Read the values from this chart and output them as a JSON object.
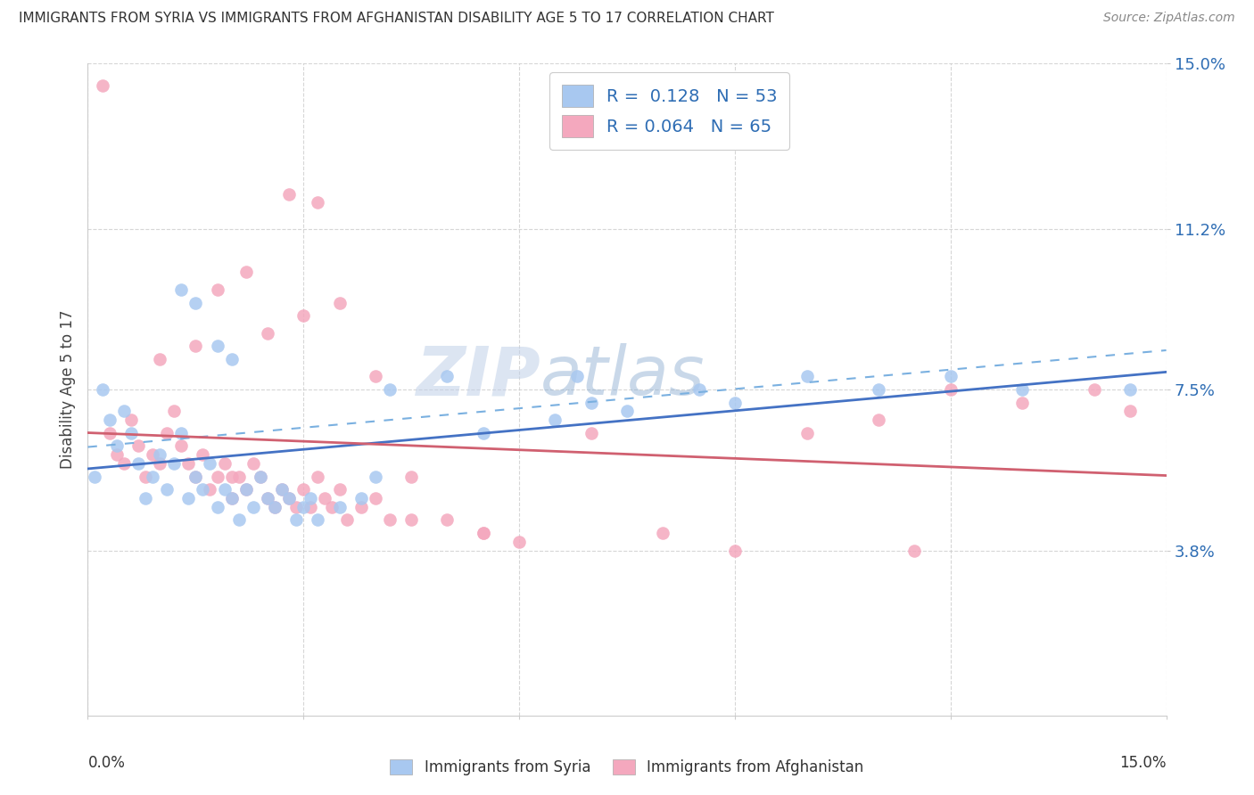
{
  "title": "IMMIGRANTS FROM SYRIA VS IMMIGRANTS FROM AFGHANISTAN DISABILITY AGE 5 TO 17 CORRELATION CHART",
  "source": "Source: ZipAtlas.com",
  "ylabel": "Disability Age 5 to 17",
  "xlim": [
    0.0,
    15.0
  ],
  "ylim": [
    0.0,
    15.0
  ],
  "yticks": [
    3.8,
    7.5,
    11.2,
    15.0
  ],
  "ytick_labels": [
    "3.8%",
    "7.5%",
    "11.2%",
    "15.0%"
  ],
  "legend1_R": "0.128",
  "legend1_N": "53",
  "legend2_R": "0.064",
  "legend2_N": "65",
  "series1_color": "#a8c8f0",
  "series2_color": "#f4a8be",
  "line1_color": "#4472c4",
  "line2_color": "#d06070",
  "dash_color": "#7ab0e0",
  "watermark_color": "#c8d8f0",
  "background_color": "#ffffff",
  "grid_color": "#cccccc",
  "Syria_x": [
    0.1,
    0.2,
    0.3,
    0.4,
    0.5,
    0.6,
    0.7,
    0.8,
    0.9,
    1.0,
    1.1,
    1.2,
    1.3,
    1.4,
    1.5,
    1.6,
    1.7,
    1.8,
    1.9,
    2.0,
    2.1,
    2.2,
    2.3,
    2.4,
    2.5,
    2.6,
    2.7,
    2.8,
    2.9,
    3.0,
    3.1,
    3.2,
    3.5,
    3.8,
    4.0,
    4.2,
    5.0,
    5.5,
    6.5,
    6.8,
    7.0,
    7.5,
    8.5,
    9.0,
    10.0,
    11.0,
    12.0,
    13.0,
    14.5,
    2.0,
    1.8,
    1.5,
    1.3
  ],
  "Syria_y": [
    5.5,
    7.5,
    6.8,
    6.2,
    7.0,
    6.5,
    5.8,
    5.0,
    5.5,
    6.0,
    5.2,
    5.8,
    6.5,
    5.0,
    5.5,
    5.2,
    5.8,
    4.8,
    5.2,
    5.0,
    4.5,
    5.2,
    4.8,
    5.5,
    5.0,
    4.8,
    5.2,
    5.0,
    4.5,
    4.8,
    5.0,
    4.5,
    4.8,
    5.0,
    5.5,
    7.5,
    7.8,
    6.5,
    6.8,
    7.8,
    7.2,
    7.0,
    7.5,
    7.2,
    7.8,
    7.5,
    7.8,
    7.5,
    7.5,
    8.2,
    8.5,
    9.5,
    9.8
  ],
  "Afghanistan_x": [
    0.2,
    0.3,
    0.4,
    0.5,
    0.6,
    0.7,
    0.8,
    0.9,
    1.0,
    1.1,
    1.2,
    1.3,
    1.4,
    1.5,
    1.6,
    1.7,
    1.8,
    1.9,
    2.0,
    2.1,
    2.2,
    2.3,
    2.4,
    2.5,
    2.6,
    2.7,
    2.8,
    2.9,
    3.0,
    3.1,
    3.2,
    3.3,
    3.4,
    3.5,
    3.6,
    3.8,
    4.0,
    4.2,
    4.5,
    5.0,
    5.5,
    6.0,
    7.0,
    8.0,
    9.0,
    10.0,
    11.0,
    12.0,
    13.0,
    14.0,
    14.5,
    1.8,
    2.2,
    2.5,
    3.0,
    3.5,
    4.0,
    1.0,
    1.5,
    2.0,
    2.8,
    3.2,
    4.5,
    5.5,
    11.5
  ],
  "Afghanistan_y": [
    14.5,
    6.5,
    6.0,
    5.8,
    6.8,
    6.2,
    5.5,
    6.0,
    5.8,
    6.5,
    7.0,
    6.2,
    5.8,
    5.5,
    6.0,
    5.2,
    5.5,
    5.8,
    5.0,
    5.5,
    5.2,
    5.8,
    5.5,
    5.0,
    4.8,
    5.2,
    5.0,
    4.8,
    5.2,
    4.8,
    5.5,
    5.0,
    4.8,
    5.2,
    4.5,
    4.8,
    5.0,
    4.5,
    5.5,
    4.5,
    4.2,
    4.0,
    6.5,
    4.2,
    3.8,
    6.5,
    6.8,
    7.5,
    7.2,
    7.5,
    7.0,
    9.8,
    10.2,
    8.8,
    9.2,
    9.5,
    7.8,
    8.2,
    8.5,
    5.5,
    12.0,
    11.8,
    4.5,
    4.2,
    3.8
  ]
}
